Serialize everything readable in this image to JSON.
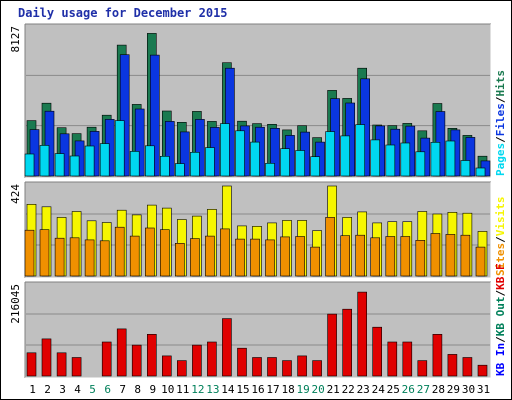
{
  "title": "Daily usage for December 2015",
  "colors": {
    "pages": "#00d8f0",
    "files": "#0a36e0",
    "hits": "#1a7a50",
    "visits": "#f6f600",
    "sites": "#f09000",
    "kb_in": "#e00000",
    "panel_bg": "#c0c0c0",
    "grid": "#8a8a8a",
    "label_blue": "#0000ff",
    "label_weekend": "#00805a"
  },
  "chart_data": [
    {
      "type": "bar",
      "panel": "top",
      "axis_max_label": "8127",
      "ylim": [
        0,
        8127
      ],
      "categories": [
        "1",
        "2",
        "3",
        "4",
        "5",
        "6",
        "7",
        "8",
        "9",
        "10",
        "11",
        "12",
        "13",
        "14",
        "15",
        "16",
        "17",
        "18",
        "19",
        "20",
        "21",
        "22",
        "23",
        "24",
        "25",
        "26",
        "27",
        "28",
        "29",
        "30",
        "31"
      ],
      "weekend_days": [
        "5",
        "6",
        "12",
        "13",
        "19",
        "20",
        "26",
        "27"
      ],
      "legend": [
        {
          "label": "Hits",
          "color": "#1a7a50"
        },
        {
          "label": "/",
          "color": "#000000"
        },
        {
          "label": "Files",
          "color": "#0a36e0"
        },
        {
          "label": "/",
          "color": "#000000"
        },
        {
          "label": "Pages",
          "color": "#00d8f0"
        }
      ],
      "series": [
        {
          "name": "Hits",
          "values": [
            3040,
            4000,
            2650,
            2330,
            2680,
            3340,
            7190,
            3930,
            7830,
            3570,
            2950,
            3550,
            3000,
            6220,
            3010,
            2880,
            2840,
            2530,
            2760,
            2110,
            4700,
            4260,
            5920,
            2800,
            2770,
            2890,
            2480,
            3980,
            2620,
            2230,
            1090
          ]
        },
        {
          "name": "Files",
          "values": [
            2550,
            3560,
            2320,
            1930,
            2450,
            3110,
            6660,
            3680,
            6640,
            3000,
            2420,
            3110,
            2670,
            5920,
            2750,
            2680,
            2620,
            2230,
            2410,
            1860,
            4250,
            4010,
            5340,
            2750,
            2570,
            2740,
            2080,
            3540,
            2530,
            2120,
            830
          ]
        },
        {
          "name": "Pages",
          "values": [
            1210,
            1680,
            1230,
            1100,
            1650,
            1780,
            3040,
            1350,
            1660,
            1080,
            680,
            1300,
            1560,
            2880,
            2480,
            1860,
            700,
            1500,
            1400,
            1060,
            2440,
            2200,
            2820,
            1980,
            1700,
            1810,
            1330,
            1850,
            1920,
            850,
            440
          ]
        }
      ]
    },
    {
      "type": "bar",
      "panel": "middle",
      "axis_max_label": "424",
      "ylim": [
        0,
        424
      ],
      "legend": [
        {
          "label": "Visits",
          "color": "#f6f600"
        },
        {
          "label": "/",
          "color": "#000000"
        },
        {
          "label": "Sites",
          "color": "#f09000"
        }
      ],
      "series": [
        {
          "name": "Visits",
          "values": [
            338,
            326,
            276,
            304,
            260,
            252,
            310,
            288,
            334,
            320,
            266,
            282,
            314,
            424,
            236,
            234,
            250,
            262,
            262,
            214,
            424,
            276,
            302,
            250,
            256,
            256,
            304,
            292,
            300,
            296,
            210
          ]
        },
        {
          "name": "Sites",
          "values": [
            216,
            218,
            178,
            180,
            170,
            166,
            230,
            188,
            226,
            218,
            154,
            176,
            188,
            222,
            174,
            174,
            170,
            184,
            186,
            136,
            276,
            190,
            192,
            180,
            186,
            186,
            168,
            200,
            196,
            192,
            136
          ]
        }
      ]
    },
    {
      "type": "bar",
      "panel": "bottom",
      "axis_max_label": "216045",
      "ylim": [
        0,
        216045
      ],
      "legend": [
        {
          "label": "KB F",
          "color": "#e00000"
        },
        {
          "label": "/",
          "color": "#000000"
        },
        {
          "label": "KB Out",
          "color": "#00805a"
        },
        {
          "label": "/",
          "color": "#000000"
        },
        {
          "label": "KB In",
          "color": "#0000ff"
        }
      ],
      "series": [
        {
          "name": "KB F",
          "values": [
            55620,
            88960,
            55620,
            44500,
            0,
            81700,
            112950,
            74120,
            100210,
            48190,
            37070,
            74120,
            81700,
            137720,
            66830,
            44500,
            44500,
            37070,
            48190,
            37070,
            148490,
            160310,
            201450,
            117130,
            81700,
            81700,
            37070,
            100210,
            51910,
            44500,
            25950
          ]
        }
      ]
    }
  ]
}
